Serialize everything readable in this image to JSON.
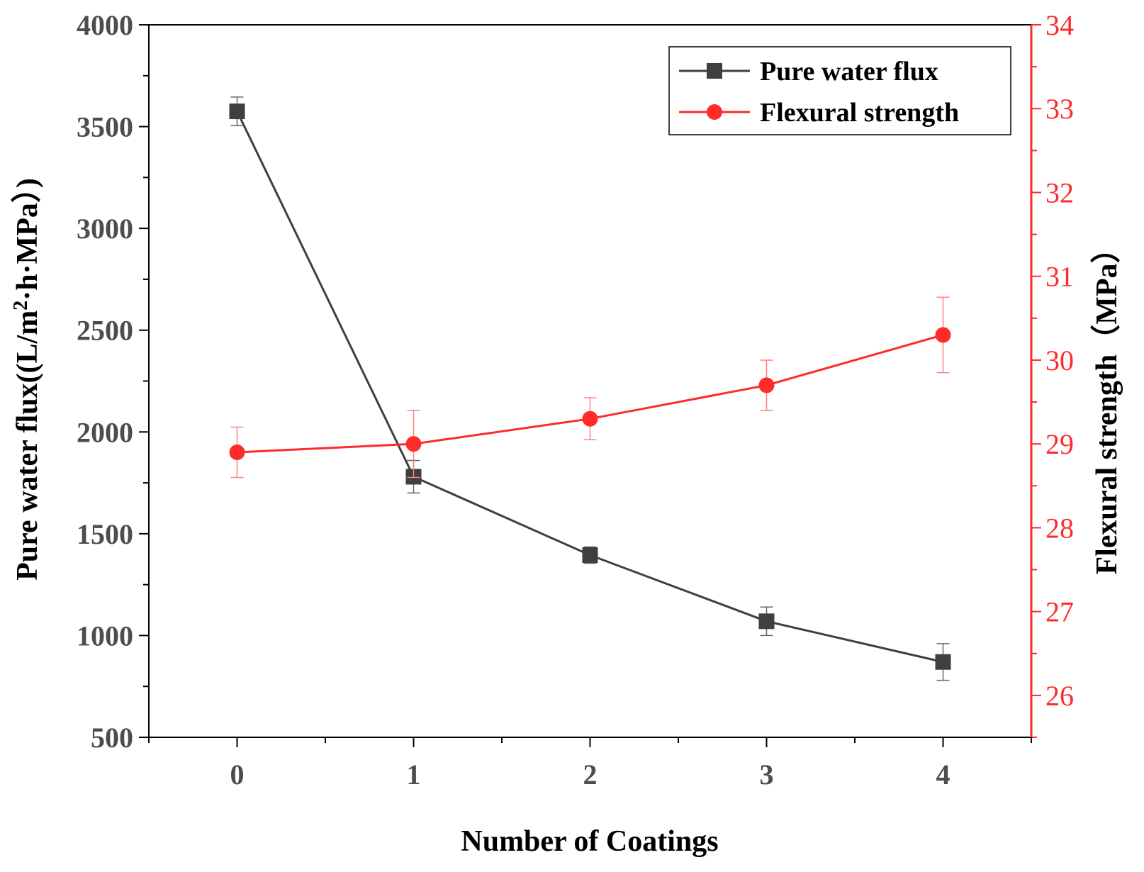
{
  "chart_data": {
    "type": "line",
    "x": [
      0,
      1,
      2,
      3,
      4
    ],
    "xticks": [
      "0",
      "1",
      "2",
      "3",
      "4"
    ],
    "xlim": [
      -0.5,
      4.5
    ],
    "xlabel": "Number of Coatings",
    "ylabel_left_main": "Pure water flux((L/m",
    "ylabel_left_sup": "2",
    "ylabel_left_tail": "·h·MPa）)",
    "ylabel_right": "Flexural strength（MPa）",
    "ylim_left": [
      500,
      4000
    ],
    "yticks_left": [
      "500",
      "1000",
      "1500",
      "2000",
      "2500",
      "3000",
      "3500",
      "4000"
    ],
    "ylim_right": [
      25.5,
      34
    ],
    "yticks_right": [
      "26",
      "27",
      "28",
      "29",
      "30",
      "31",
      "32",
      "33",
      "34"
    ],
    "legend_position": "top-right",
    "grid": false,
    "series": [
      {
        "name": "Pure water flux",
        "axis": "left",
        "color": "#3f3f3f",
        "marker": "square",
        "values": [
          3575,
          1780,
          1395,
          1070,
          870
        ],
        "errors": [
          70,
          80,
          40,
          70,
          90
        ]
      },
      {
        "name": "Flexural strength",
        "axis": "right",
        "color": "#ff2a2a",
        "marker": "circle",
        "values": [
          28.9,
          29.0,
          29.3,
          29.7,
          30.3
        ],
        "errors": [
          0.3,
          0.4,
          0.25,
          0.3,
          0.45
        ]
      }
    ]
  }
}
